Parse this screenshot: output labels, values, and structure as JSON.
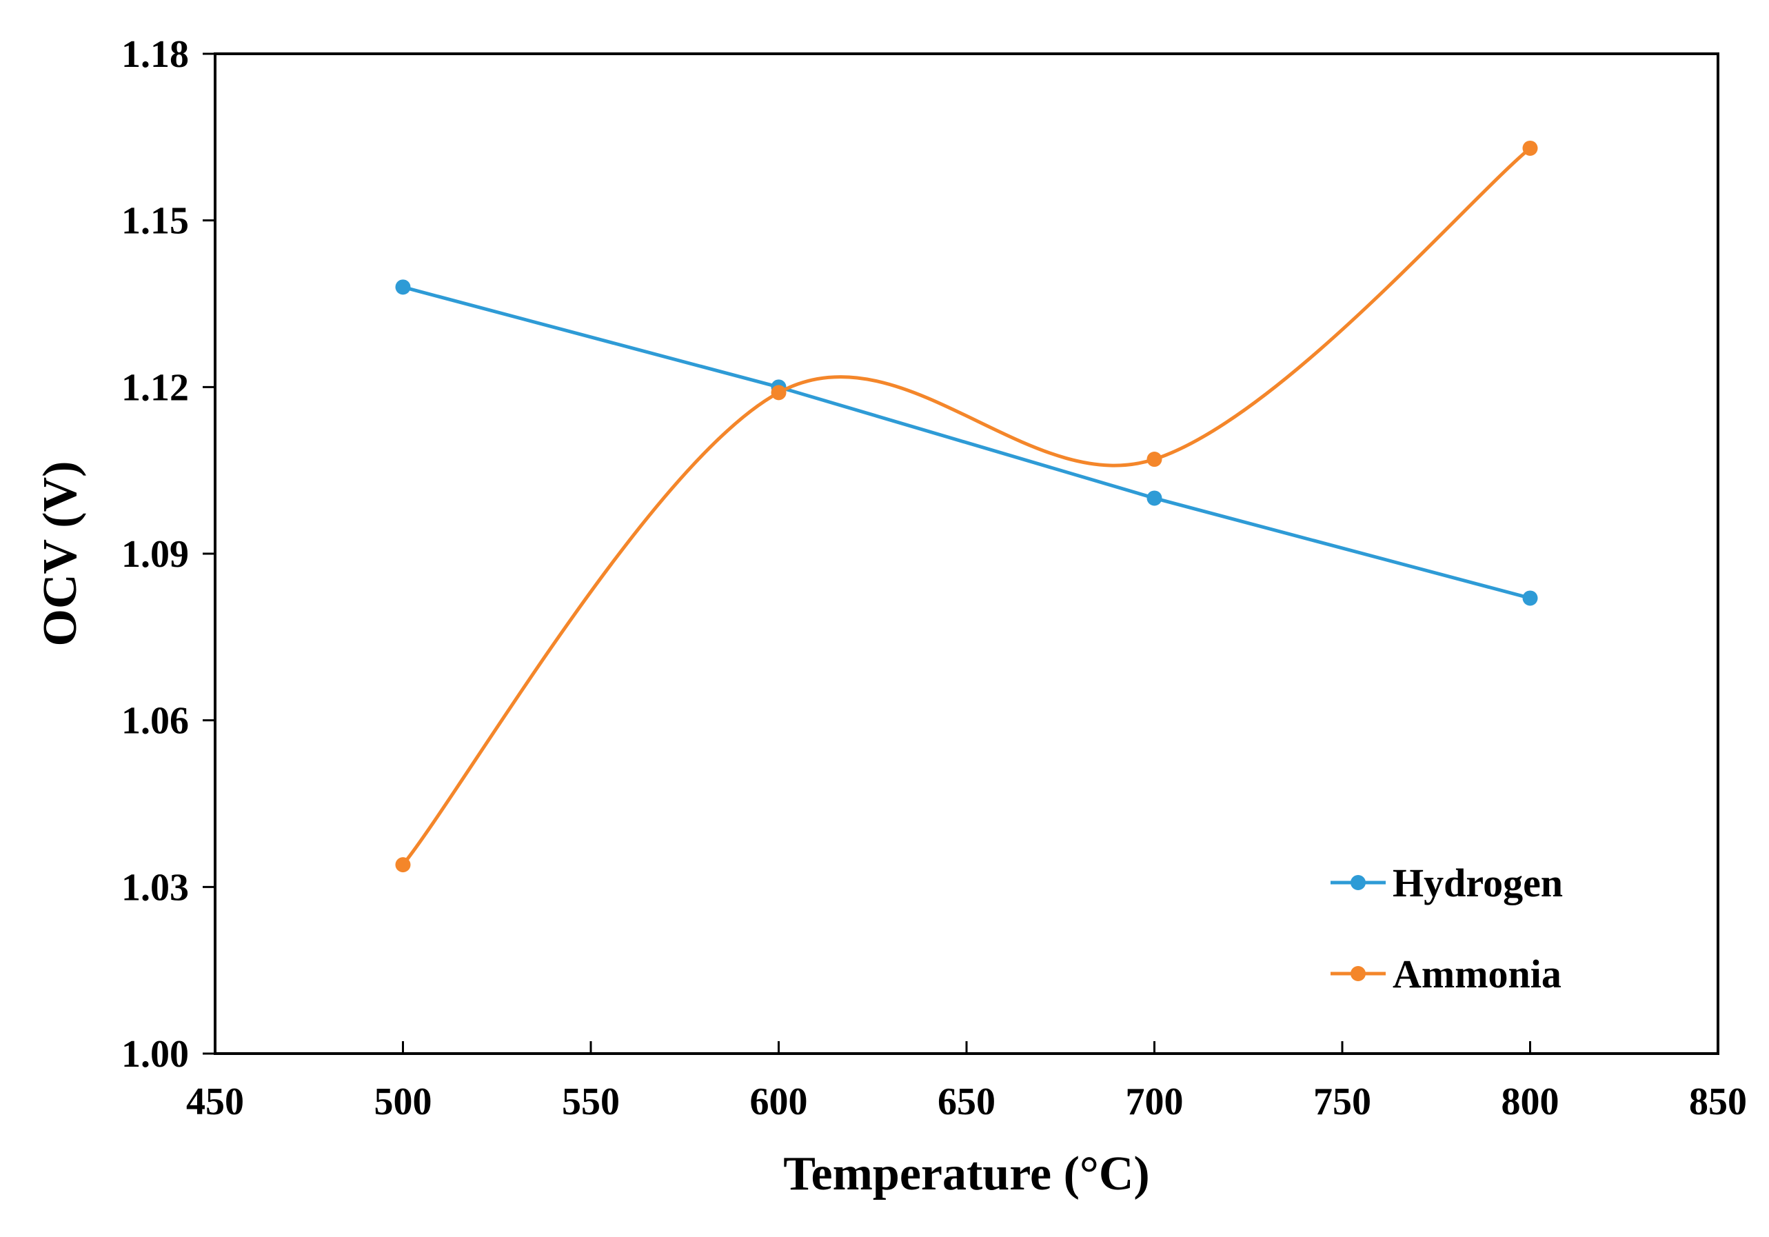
{
  "chart_data": {
    "type": "line",
    "title": "",
    "xlabel": "Temperature (°C)",
    "ylabel": "OCV (V)",
    "xlim": [
      450,
      850
    ],
    "ylim": [
      1.0,
      1.18
    ],
    "x_ticks": [
      "450",
      "500",
      "550",
      "600",
      "650",
      "700",
      "750",
      "800",
      "850"
    ],
    "y_ticks": [
      "1.00",
      "1.03",
      "1.06",
      "1.09",
      "1.12",
      "1.15",
      "1.18"
    ],
    "grid": false,
    "legend_position": "bottom-right",
    "series": [
      {
        "name": "Hydrogen",
        "color": "#2e9bd6",
        "smooth": false,
        "x": [
          500,
          600,
          700,
          800
        ],
        "values": [
          1.138,
          1.12,
          1.1,
          1.082
        ]
      },
      {
        "name": "Ammonia",
        "color": "#f4862a",
        "smooth": true,
        "x": [
          500,
          600,
          700,
          800
        ],
        "values": [
          1.034,
          1.119,
          1.107,
          1.163
        ]
      }
    ]
  }
}
